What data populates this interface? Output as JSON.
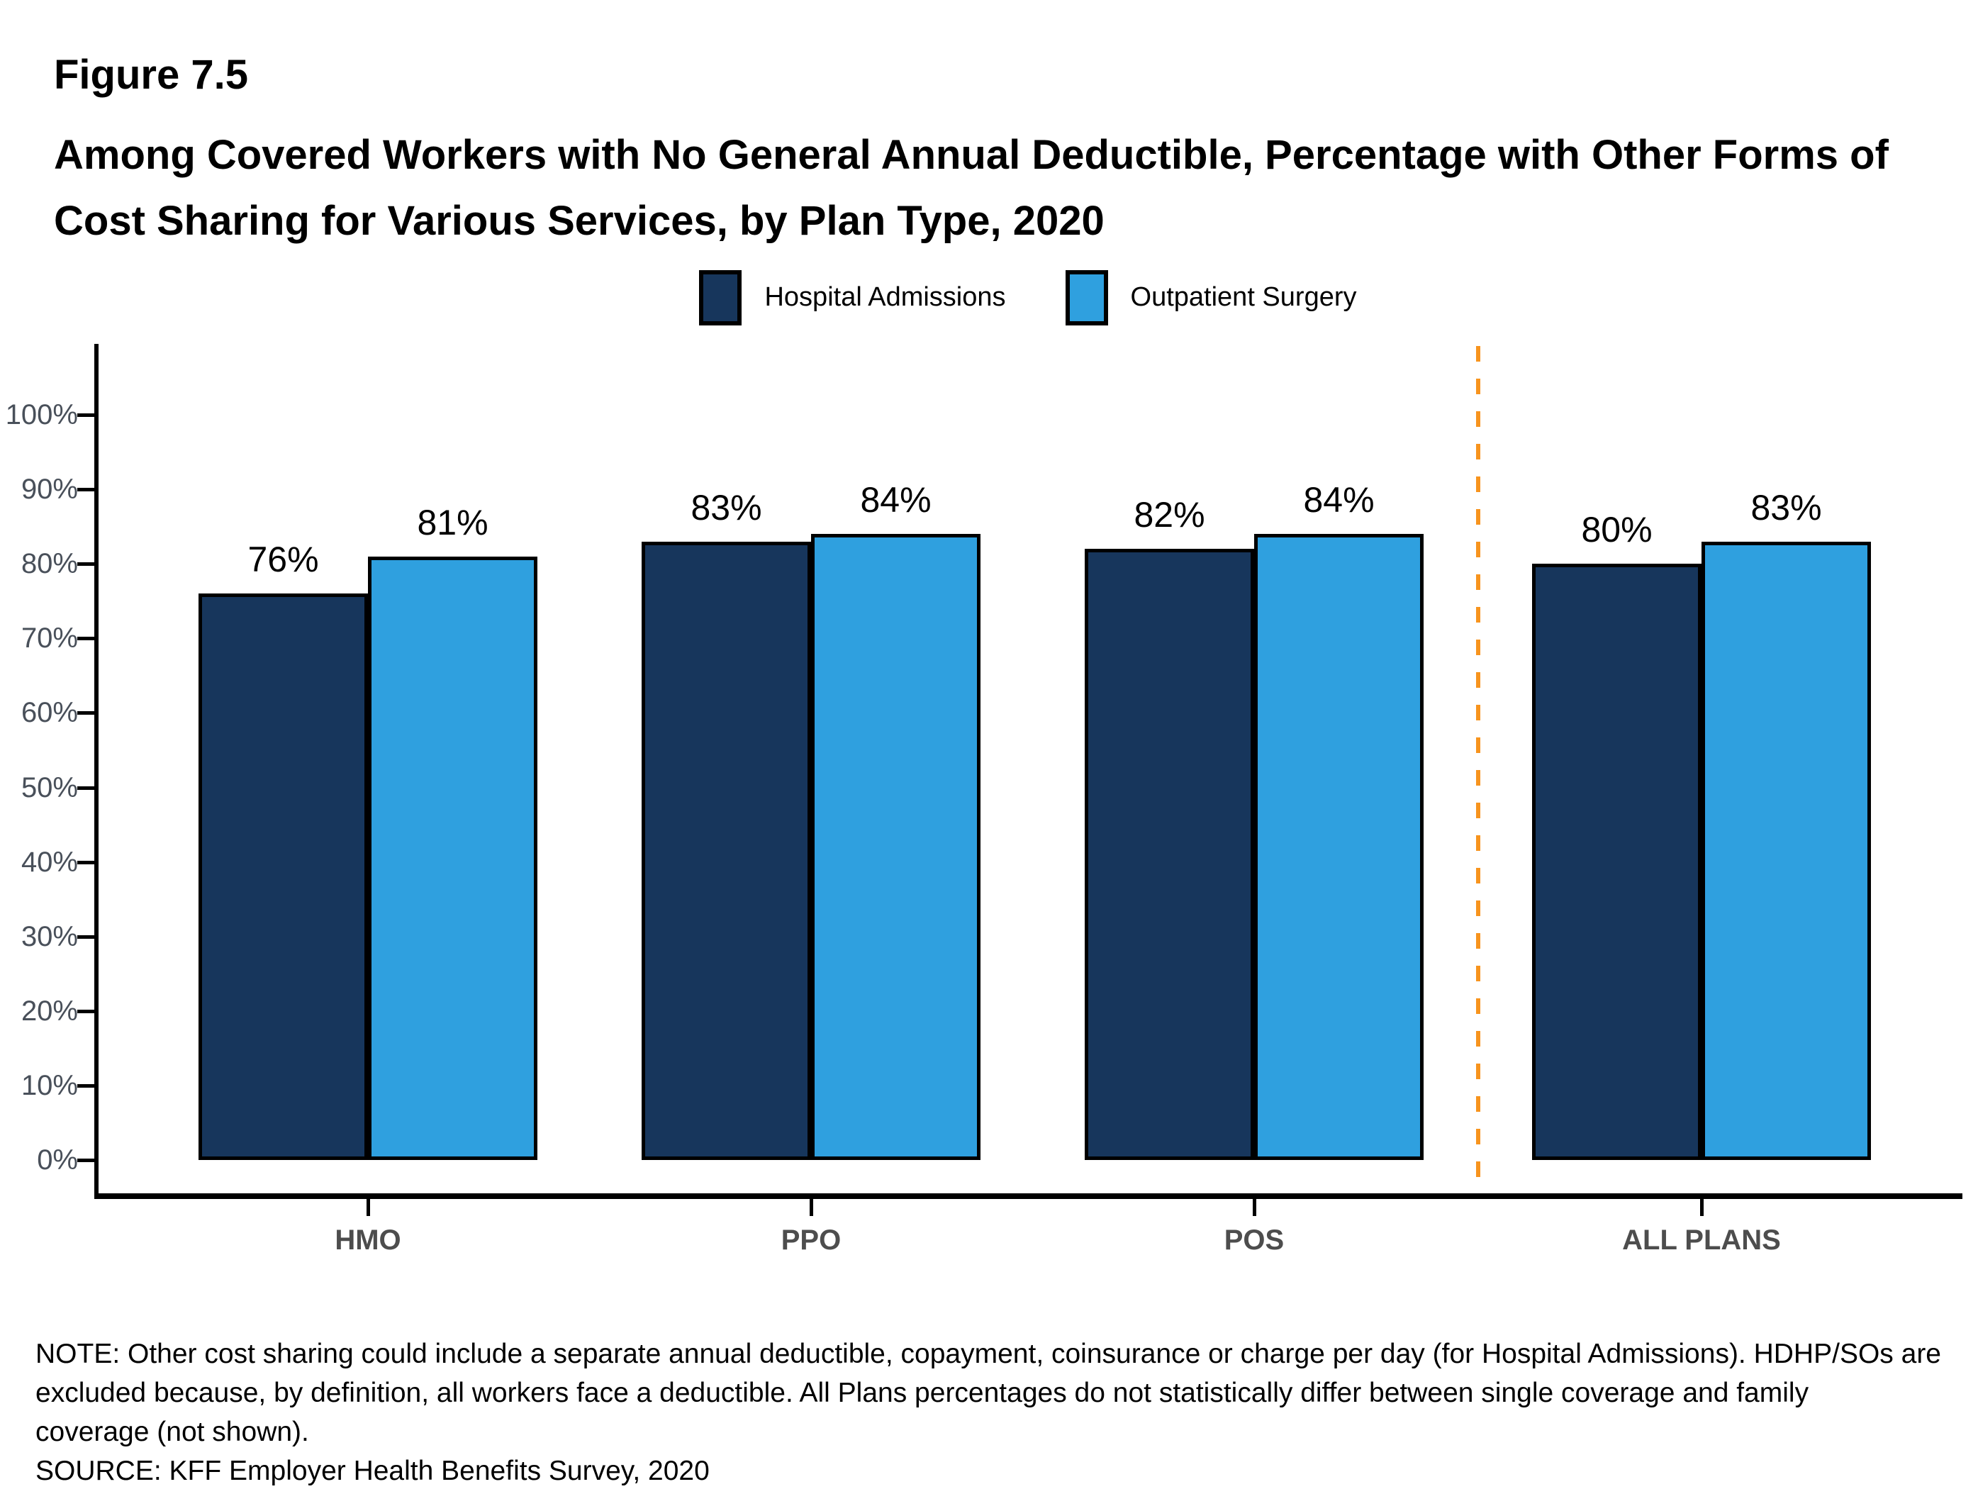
{
  "header": {
    "figure_label": "Figure 7.5",
    "title_lines": [
      "Among Covered Workers with No General Annual Deductible, Percentage with Other Forms of",
      "Cost Sharing for Various Services, by Plan Type, 2020"
    ]
  },
  "legend": {
    "position": "top-center",
    "items": [
      {
        "label": "Hospital Admissions",
        "color": "#17365C"
      },
      {
        "label": "Outpatient Surgery",
        "color": "#2FA0DF"
      }
    ]
  },
  "chart_data": {
    "type": "bar",
    "title": "Among Covered Workers with No General Annual Deductible, Percentage with Other Forms of Cost Sharing for Various Services, by Plan Type, 2020",
    "categories": [
      "HMO",
      "PPO",
      "POS",
      "ALL PLANS"
    ],
    "series": [
      {
        "name": "Hospital Admissions",
        "color": "#17365C",
        "values": [
          76,
          83,
          82,
          80
        ]
      },
      {
        "name": "Outpatient Surgery",
        "color": "#2FA0DF",
        "values": [
          81,
          84,
          84,
          83
        ]
      }
    ],
    "value_labels": [
      [
        "76%",
        "83%",
        "82%",
        "80%"
      ],
      [
        "81%",
        "84%",
        "84%",
        "83%"
      ]
    ],
    "xlabel": "",
    "ylabel": "",
    "ylim": [
      0,
      100
    ],
    "ytick_labels": [
      "0%",
      "10%",
      "20%",
      "30%",
      "40%",
      "50%",
      "60%",
      "70%",
      "80%",
      "90%",
      "100%"
    ],
    "grid": false,
    "legend_position": "top-center",
    "bar_border_color": "#000000",
    "separator": {
      "between": [
        "POS",
        "ALL PLANS"
      ],
      "style": "dashed",
      "color": "#F7941E"
    }
  },
  "note": {
    "lines": [
      "NOTE: Other cost sharing could include a separate annual deductible, copayment, coinsurance or charge per day (for Hospital Admissions). HDHP/SOs are",
      "excluded because, by definition, all workers face a deductible. All Plans percentages do not statistically differ between single coverage and family",
      "coverage (not shown)."
    ],
    "source": "SOURCE: KFF Employer Health Benefits Survey, 2020"
  }
}
